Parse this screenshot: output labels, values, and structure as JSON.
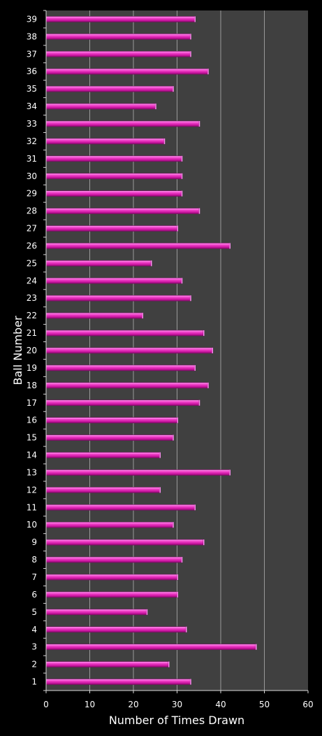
{
  "chart_data": {
    "type": "bar",
    "orientation": "horizontal",
    "title": "",
    "xlabel": "Number of Times Drawn",
    "ylabel": "Ball Number",
    "xlim": [
      0,
      60
    ],
    "xticks": [
      0,
      10,
      20,
      30,
      40,
      50,
      60
    ],
    "grid": true,
    "legend": "none",
    "colors": {
      "bar": "#e020b0",
      "bar_highlight": "#ff8cf0",
      "bar_shadow": "#7a0f63",
      "plot_bg": "#404040",
      "page_bg": "#000000",
      "grid": "#9a9a9a"
    },
    "categories": [
      "1",
      "2",
      "3",
      "4",
      "5",
      "6",
      "7",
      "8",
      "9",
      "10",
      "11",
      "12",
      "13",
      "14",
      "15",
      "16",
      "17",
      "18",
      "19",
      "20",
      "21",
      "22",
      "23",
      "24",
      "25",
      "26",
      "27",
      "28",
      "29",
      "30",
      "31",
      "32",
      "33",
      "34",
      "35",
      "36",
      "37",
      "38",
      "39"
    ],
    "values": [
      33,
      28,
      48,
      32,
      23,
      30,
      30,
      31,
      36,
      29,
      34,
      26,
      42,
      26,
      29,
      30,
      35,
      37,
      34,
      38,
      36,
      22,
      33,
      31,
      24,
      42,
      30,
      35,
      31,
      31,
      31,
      27,
      35,
      25,
      29,
      37,
      33,
      33,
      34
    ]
  }
}
